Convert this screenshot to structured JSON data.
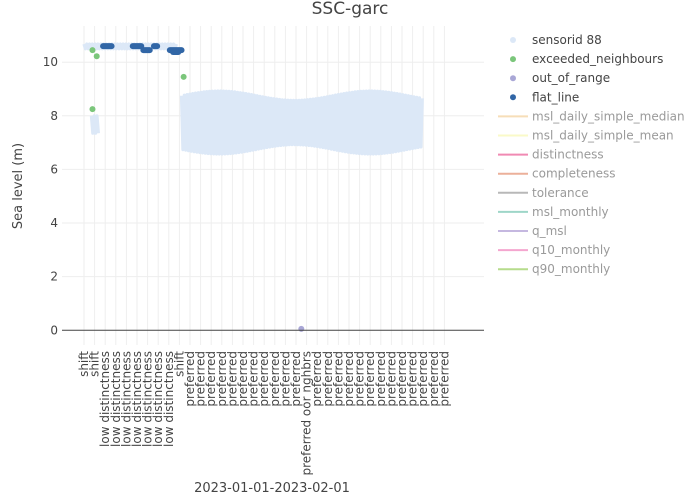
{
  "chart_data": {
    "type": "scatter",
    "title": "SSC-garc",
    "xlabel": "2023-01-01-2023-02-01",
    "ylabel": "Sea level (m)",
    "ylim": [
      -0.55,
      11.35
    ],
    "yticks": [
      0,
      2,
      4,
      6,
      8,
      10
    ],
    "grid": true,
    "legend_position": "right",
    "x_tick_labels": [
      "shift",
      "shift",
      "low distinctness",
      "low distinctness",
      "low distinctness",
      "low distinctness",
      "low distinctness",
      "low distinctness",
      "low distinctness",
      "shift",
      "preferred",
      "preferred",
      "preferred",
      "preferred",
      "preferred",
      "preferred",
      "preferred",
      "preferred",
      "preferred",
      "preferred",
      "preferred",
      "preferred oor nghbrs",
      "preferred",
      "preferred",
      "preferred",
      "preferred",
      "preferred",
      "preferred",
      "preferred",
      "preferred",
      "preferred",
      "preferred",
      "preferred",
      "preferred",
      "preferred"
    ],
    "raw_segments": [
      {
        "day_start": 0.0,
        "day_end": 8.8,
        "low": 10.5,
        "high": 10.68
      },
      {
        "day_start": 0.7,
        "day_end": 1.4,
        "low": 7.35,
        "high": 8.0
      },
      {
        "day_start": 9.2,
        "day_end": 32.0,
        "low": 6.75,
        "high": 8.75
      }
    ],
    "series": [
      {
        "name": "sensorid 88",
        "color": "#dce8f7"
      },
      {
        "name": "exceeded_neighbours",
        "color": "#7bc67b",
        "points": [
          [
            0.8,
            10.45
          ],
          [
            1.2,
            10.22
          ],
          [
            0.8,
            8.25
          ],
          [
            9.4,
            9.45
          ]
        ]
      },
      {
        "name": "out_of_range",
        "color": "#a9a7d6",
        "points": [
          [
            20.5,
            0.05
          ]
        ]
      },
      {
        "name": "flat_line",
        "color": "#3166a6",
        "segments": [
          [
            1.8,
            2.6,
            10.6
          ],
          [
            4.6,
            5.4,
            10.6
          ],
          [
            5.6,
            6.2,
            10.45
          ],
          [
            6.6,
            6.9,
            10.6
          ],
          [
            8.1,
            9.2,
            10.45
          ],
          [
            8.4,
            8.9,
            10.38
          ]
        ]
      }
    ],
    "inactive_series": [
      {
        "name": "msl_daily_simple_median",
        "color": "#f6deb8"
      },
      {
        "name": "msl_daily_simple_mean",
        "color": "#fafac8"
      },
      {
        "name": "distinctness",
        "color": "#f08ab3"
      },
      {
        "name": "completeness",
        "color": "#ecb09a"
      },
      {
        "name": "tolerance",
        "color": "#b8b8b8"
      },
      {
        "name": "msl_monthly",
        "color": "#9ed6c8"
      },
      {
        "name": "q_msl",
        "color": "#c5b8e0"
      },
      {
        "name": "q10_monthly",
        "color": "#f4a6cf"
      },
      {
        "name": "q90_monthly",
        "color": "#b6dc8c"
      }
    ]
  }
}
